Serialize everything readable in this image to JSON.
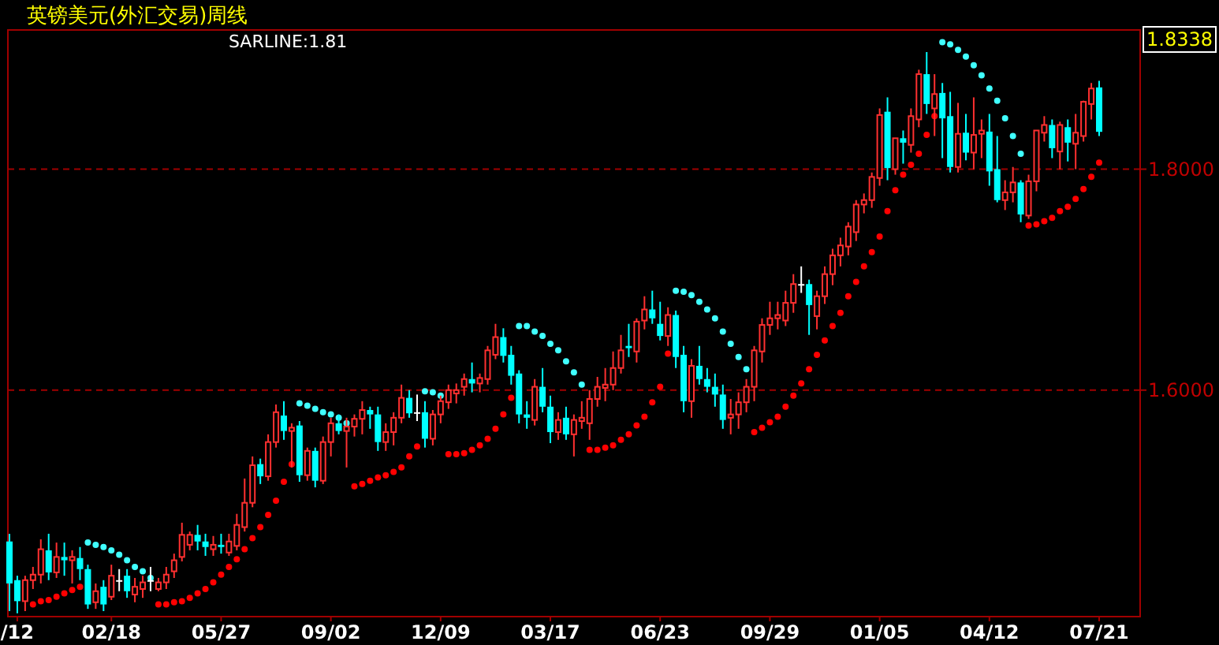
{
  "chart_data": {
    "type": "candlestick",
    "title": "英镑美元(外汇交易)周线",
    "annotations": [
      "SARLINE:1.81",
      "1.8338"
    ],
    "categories": [
      null,
      "/12",
      null,
      null,
      null,
      null,
      null,
      null,
      null,
      null,
      null,
      null,
      null,
      "02/18",
      null,
      null,
      null,
      null,
      null,
      null,
      null,
      null,
      null,
      null,
      null,
      null,
      null,
      "05/27",
      null,
      null,
      null,
      null,
      null,
      null,
      null,
      null,
      null,
      null,
      null,
      null,
      null,
      "09/02",
      null,
      null,
      null,
      null,
      null,
      null,
      null,
      null,
      null,
      null,
      null,
      null,
      null,
      "12/09",
      null,
      null,
      null,
      null,
      null,
      null,
      null,
      null,
      null,
      null,
      null,
      null,
      null,
      "03/17",
      null,
      null,
      null,
      null,
      null,
      null,
      null,
      null,
      null,
      null,
      null,
      null,
      null,
      "06/23",
      null,
      null,
      null,
      null,
      null,
      null,
      null,
      null,
      null,
      null,
      null,
      null,
      null,
      "09/29",
      null,
      null,
      null,
      null,
      null,
      null,
      null,
      null,
      null,
      null,
      null,
      null,
      null,
      "01/05",
      null,
      null,
      null,
      null,
      null,
      null,
      null,
      null,
      null,
      null,
      null,
      null,
      null,
      "04/12",
      null,
      null,
      null,
      null,
      null,
      null,
      null,
      null,
      null,
      null,
      null,
      null,
      null,
      "07/21"
    ],
    "ohlc": [
      [
        1.463,
        1.47,
        1.4,
        1.425
      ],
      [
        1.428,
        1.432,
        1.398,
        1.409
      ],
      [
        1.409,
        1.432,
        1.4,
        1.428
      ],
      [
        1.428,
        1.44,
        1.42,
        1.433
      ],
      [
        1.433,
        1.465,
        1.425,
        1.456
      ],
      [
        1.455,
        1.47,
        1.428,
        1.435
      ],
      [
        1.435,
        1.462,
        1.43,
        1.449
      ],
      [
        1.449,
        1.462,
        1.432,
        1.446
      ],
      [
        1.446,
        1.455,
        1.425,
        1.449
      ],
      [
        1.448,
        1.458,
        1.428,
        1.438
      ],
      [
        1.438,
        1.442,
        1.402,
        1.406
      ],
      [
        1.408,
        1.425,
        1.402,
        1.418
      ],
      [
        1.422,
        1.428,
        1.4,
        1.406
      ],
      [
        1.413,
        1.442,
        1.41,
        1.432
      ],
      [
        1.428,
        1.438,
        1.418,
        1.428
      ],
      [
        1.432,
        1.438,
        1.412,
        1.418
      ],
      [
        1.415,
        1.43,
        1.408,
        1.422
      ],
      [
        1.42,
        1.432,
        1.412,
        1.426
      ],
      [
        1.428,
        1.44,
        1.418,
        1.428
      ],
      [
        1.42,
        1.43,
        1.418,
        1.426
      ],
      [
        1.426,
        1.44,
        1.42,
        1.433
      ],
      [
        1.436,
        1.452,
        1.43,
        1.446
      ],
      [
        1.449,
        1.48,
        1.445,
        1.469
      ],
      [
        1.46,
        1.472,
        1.455,
        1.469
      ],
      [
        1.469,
        1.478,
        1.455,
        1.463
      ],
      [
        1.463,
        1.47,
        1.45,
        1.458
      ],
      [
        1.456,
        1.468,
        1.45,
        1.46
      ],
      [
        1.46,
        1.47,
        1.452,
        1.458
      ],
      [
        1.453,
        1.47,
        1.45,
        1.463
      ],
      [
        1.459,
        1.488,
        1.455,
        1.478
      ],
      [
        1.476,
        1.52,
        1.472,
        1.498
      ],
      [
        1.498,
        1.54,
        1.494,
        1.532
      ],
      [
        1.533,
        1.538,
        1.515,
        1.522
      ],
      [
        1.522,
        1.56,
        1.518,
        1.553
      ],
      [
        1.553,
        1.587,
        1.548,
        1.58
      ],
      [
        1.577,
        1.59,
        1.555,
        1.563
      ],
      [
        1.563,
        1.57,
        1.53,
        1.566
      ],
      [
        1.568,
        1.572,
        1.517,
        1.523
      ],
      [
        1.523,
        1.548,
        1.518,
        1.545
      ],
      [
        1.545,
        1.548,
        1.512,
        1.518
      ],
      [
        1.518,
        1.558,
        1.515,
        1.553
      ],
      [
        1.553,
        1.575,
        1.54,
        1.57
      ],
      [
        1.57,
        1.578,
        1.56,
        1.563
      ],
      [
        1.563,
        1.575,
        1.53,
        1.567
      ],
      [
        1.567,
        1.578,
        1.558,
        1.574
      ],
      [
        1.574,
        1.59,
        1.56,
        1.582
      ],
      [
        1.582,
        1.585,
        1.565,
        1.578
      ],
      [
        1.578,
        1.585,
        1.545,
        1.553
      ],
      [
        1.553,
        1.57,
        1.545,
        1.562
      ],
      [
        1.562,
        1.58,
        1.55,
        1.575
      ],
      [
        1.575,
        1.605,
        1.57,
        1.593
      ],
      [
        1.593,
        1.6,
        1.575,
        1.579
      ],
      [
        1.58,
        1.596,
        1.572,
        1.58
      ],
      [
        1.58,
        1.59,
        1.548,
        1.556
      ],
      [
        1.556,
        1.582,
        1.55,
        1.578
      ],
      [
        1.578,
        1.595,
        1.57,
        1.59
      ],
      [
        1.589,
        1.605,
        1.583,
        1.6
      ],
      [
        1.597,
        1.606,
        1.588,
        1.6
      ],
      [
        1.603,
        1.615,
        1.595,
        1.61
      ],
      [
        1.61,
        1.625,
        1.598,
        1.606
      ],
      [
        1.606,
        1.615,
        1.598,
        1.611
      ],
      [
        1.61,
        1.64,
        1.605,
        1.636
      ],
      [
        1.632,
        1.66,
        1.628,
        1.648
      ],
      [
        1.648,
        1.656,
        1.625,
        1.631
      ],
      [
        1.632,
        1.64,
        1.605,
        1.613
      ],
      [
        1.615,
        1.618,
        1.57,
        1.578
      ],
      [
        1.578,
        1.59,
        1.565,
        1.575
      ],
      [
        1.573,
        1.61,
        1.568,
        1.603
      ],
      [
        1.603,
        1.62,
        1.58,
        1.585
      ],
      [
        1.585,
        1.595,
        1.552,
        1.562
      ],
      [
        1.562,
        1.58,
        1.555,
        1.573
      ],
      [
        1.575,
        1.585,
        1.555,
        1.56
      ],
      [
        1.56,
        1.578,
        1.54,
        1.573
      ],
      [
        1.572,
        1.59,
        1.565,
        1.575
      ],
      [
        1.57,
        1.6,
        1.555,
        1.592
      ],
      [
        1.592,
        1.612,
        1.585,
        1.603
      ],
      [
        1.602,
        1.62,
        1.59,
        1.605
      ],
      [
        1.605,
        1.635,
        1.6,
        1.62
      ],
      [
        1.62,
        1.65,
        1.615,
        1.636
      ],
      [
        1.64,
        1.66,
        1.63,
        1.638
      ],
      [
        1.635,
        1.665,
        1.625,
        1.662
      ],
      [
        1.663,
        1.685,
        1.655,
        1.673
      ],
      [
        1.673,
        1.69,
        1.66,
        1.665
      ],
      [
        1.66,
        1.68,
        1.645,
        1.649
      ],
      [
        1.649,
        1.675,
        1.64,
        1.668
      ],
      [
        1.668,
        1.672,
        1.62,
        1.63
      ],
      [
        1.632,
        1.64,
        1.58,
        1.59
      ],
      [
        1.59,
        1.628,
        1.575,
        1.622
      ],
      [
        1.622,
        1.64,
        1.605,
        1.61
      ],
      [
        1.61,
        1.62,
        1.598,
        1.603
      ],
      [
        1.603,
        1.615,
        1.585,
        1.596
      ],
      [
        1.596,
        1.605,
        1.565,
        1.573
      ],
      [
        1.575,
        1.592,
        1.56,
        1.578
      ],
      [
        1.578,
        1.598,
        1.565,
        1.589
      ],
      [
        1.589,
        1.61,
        1.58,
        1.603
      ],
      [
        1.603,
        1.64,
        1.59,
        1.636
      ],
      [
        1.635,
        1.665,
        1.625,
        1.659
      ],
      [
        1.659,
        1.68,
        1.65,
        1.665
      ],
      [
        1.665,
        1.68,
        1.655,
        1.668
      ],
      [
        1.663,
        1.69,
        1.658,
        1.679
      ],
      [
        1.679,
        1.705,
        1.67,
        1.696
      ],
      [
        1.696,
        1.712,
        1.688,
        1.696
      ],
      [
        1.696,
        1.7,
        1.65,
        1.677
      ],
      [
        1.667,
        1.69,
        1.655,
        1.685
      ],
      [
        1.685,
        1.712,
        1.678,
        1.705
      ],
      [
        1.705,
        1.728,
        1.695,
        1.722
      ],
      [
        1.722,
        1.738,
        1.712,
        1.731
      ],
      [
        1.73,
        1.752,
        1.722,
        1.748
      ],
      [
        1.743,
        1.772,
        1.735,
        1.768
      ],
      [
        1.768,
        1.778,
        1.76,
        1.772
      ],
      [
        1.772,
        1.797,
        1.765,
        1.793
      ],
      [
        1.792,
        1.855,
        1.785,
        1.849
      ],
      [
        1.852,
        1.865,
        1.79,
        1.801
      ],
      [
        1.8,
        1.828,
        1.795,
        1.828
      ],
      [
        1.828,
        1.835,
        1.805,
        1.824
      ],
      [
        1.822,
        1.855,
        1.815,
        1.848
      ],
      [
        1.845,
        1.89,
        1.838,
        1.886
      ],
      [
        1.886,
        1.906,
        1.85,
        1.859
      ],
      [
        1.855,
        1.886,
        1.83,
        1.868
      ],
      [
        1.869,
        1.878,
        1.81,
        1.846
      ],
      [
        1.848,
        1.87,
        1.797,
        1.802
      ],
      [
        1.802,
        1.86,
        1.797,
        1.832
      ],
      [
        1.833,
        1.85,
        1.808,
        1.815
      ],
      [
        1.815,
        1.865,
        1.8,
        1.831
      ],
      [
        1.832,
        1.845,
        1.81,
        1.835
      ],
      [
        1.834,
        1.85,
        1.785,
        1.798
      ],
      [
        1.8,
        1.83,
        1.77,
        1.772
      ],
      [
        1.772,
        1.79,
        1.763,
        1.779
      ],
      [
        1.779,
        1.802,
        1.77,
        1.788
      ],
      [
        1.788,
        1.79,
        1.752,
        1.759
      ],
      [
        1.758,
        1.795,
        1.755,
        1.789
      ],
      [
        1.789,
        1.835,
        1.78,
        1.835
      ],
      [
        1.833,
        1.848,
        1.825,
        1.84
      ],
      [
        1.84,
        1.845,
        1.81,
        1.819
      ],
      [
        1.816,
        1.843,
        1.8,
        1.84
      ],
      [
        1.838,
        1.845,
        1.807,
        1.824
      ],
      [
        1.823,
        1.85,
        1.8,
        1.833
      ],
      [
        1.83,
        1.862,
        1.825,
        1.861
      ],
      [
        1.859,
        1.878,
        1.845,
        1.873
      ],
      [
        1.874,
        1.88,
        1.83,
        1.8338
      ]
    ],
    "colors": [
      "#00ffff",
      "#00ffff",
      "#ff3030",
      "#ff3030",
      "#ff3030",
      "#00ffff",
      "#ff3030",
      "#00ffff",
      "#ff3030",
      "#00ffff",
      "#00ffff",
      "#ff3030",
      "#00ffff",
      "#ff3030",
      "#ffffff",
      "#00ffff",
      "#ff3030",
      "#ff3030",
      "#ffffff",
      "#ff3030",
      "#ff3030",
      "#ff3030",
      "#ff3030",
      "#ff3030",
      "#00ffff",
      "#00ffff",
      "#ff3030",
      "#00ffff",
      "#ff3030",
      "#ff3030",
      "#ff3030",
      "#ff3030",
      "#00ffff",
      "#ff3030",
      "#ff3030",
      "#00ffff",
      "#ff3030",
      "#00ffff",
      "#ff3030",
      "#00ffff",
      "#ff3030",
      "#ff3030",
      "#00ffff",
      "#ff3030",
      "#ff3030",
      "#ff3030",
      "#00ffff",
      "#00ffff",
      "#ff3030",
      "#ff3030",
      "#ff3030",
      "#00ffff",
      "#ffffff",
      "#00ffff",
      "#ff3030",
      "#ff3030",
      "#ff3030",
      "#ff3030",
      "#ff3030",
      "#00ffff",
      "#ff3030",
      "#ff3030",
      "#ff3030",
      "#00ffff",
      "#00ffff",
      "#00ffff",
      "#00ffff",
      "#ff3030",
      "#00ffff",
      "#00ffff",
      "#ff3030",
      "#00ffff",
      "#ff3030",
      "#ff3030",
      "#ff3030",
      "#ff3030",
      "#ff3030",
      "#ff3030",
      "#ff3030",
      "#00ffff",
      "#ff3030",
      "#ff3030",
      "#00ffff",
      "#00ffff",
      "#ff3030",
      "#00ffff",
      "#00ffff",
      "#ff3030",
      "#00ffff",
      "#00ffff",
      "#00ffff",
      "#00ffff",
      "#ff3030",
      "#ff3030",
      "#ff3030",
      "#ff3030",
      "#ff3030",
      "#ff3030",
      "#ff3030",
      "#ff3030",
      "#ff3030",
      "#ffffff",
      "#00ffff",
      "#ff3030",
      "#ff3030",
      "#ff3030",
      "#ff3030",
      "#ff3030",
      "#ff3030",
      "#ff3030",
      "#ff3030",
      "#ff3030",
      "#00ffff",
      "#ff3030",
      "#00ffff",
      "#ff3030",
      "#ff3030",
      "#00ffff",
      "#ff3030",
      "#00ffff",
      "#00ffff",
      "#ff3030",
      "#00ffff",
      "#ff3030",
      "#ff3030",
      "#00ffff",
      "#00ffff",
      "#ff3030",
      "#ff3030",
      "#00ffff",
      "#ff3030",
      "#ff3030",
      "#ff3030",
      "#00ffff",
      "#ff3030",
      "#00ffff",
      "#ff3030",
      "#ff3030",
      "#ff3030",
      "#00ffff"
    ],
    "series": [
      {
        "type": "scatter",
        "color": "#ff0000",
        "values": [
          null,
          null,
          null,
          1.406,
          1.409,
          1.41,
          1.413,
          1.416,
          1.419,
          1.422,
          null,
          null,
          null,
          null,
          null,
          null,
          null,
          null,
          null,
          1.406,
          1.406,
          1.408,
          1.409,
          1.412,
          1.416,
          1.42,
          1.426,
          1.433,
          1.44,
          1.447,
          1.456,
          1.466,
          1.476,
          1.487,
          1.5,
          1.517,
          1.533,
          null,
          null,
          null,
          null,
          null,
          null,
          null,
          1.513,
          1.515,
          1.518,
          1.521,
          1.523,
          1.526,
          1.53,
          1.54,
          1.549,
          null,
          null,
          null,
          1.542,
          1.542,
          1.543,
          1.546,
          1.55,
          1.556,
          1.565,
          1.578,
          1.593,
          null,
          null,
          null,
          null,
          null,
          null,
          null,
          null,
          null,
          1.546,
          1.546,
          1.548,
          1.55,
          1.555,
          1.56,
          1.568,
          1.576,
          1.589,
          1.603,
          1.633,
          null,
          null,
          null,
          null,
          null,
          null,
          null,
          null,
          null,
          null,
          1.562,
          1.566,
          1.571,
          1.576,
          1.585,
          1.595,
          1.606,
          1.619,
          1.632,
          1.645,
          1.658,
          1.67,
          1.685,
          1.698,
          1.712,
          1.725,
          1.739,
          1.762,
          1.781,
          1.795,
          1.804,
          1.814,
          1.831,
          1.848,
          null,
          null,
          null,
          null,
          null,
          null,
          null,
          null,
          null,
          null,
          null,
          1.749,
          1.75,
          1.753,
          1.756,
          1.762,
          1.766,
          1.773,
          1.782,
          1.793,
          1.806
        ]
      },
      {
        "type": "scatter",
        "color": "#40ffff",
        "values": [
          null,
          null,
          null,
          null,
          null,
          null,
          null,
          null,
          null,
          null,
          1.462,
          1.46,
          1.458,
          1.455,
          1.451,
          1.446,
          1.44,
          1.436,
          1.43,
          null,
          null,
          null,
          null,
          null,
          null,
          null,
          null,
          null,
          null,
          null,
          null,
          null,
          null,
          null,
          null,
          null,
          null,
          1.588,
          1.586,
          1.583,
          1.58,
          1.578,
          1.575,
          1.57,
          null,
          null,
          null,
          null,
          null,
          null,
          null,
          null,
          null,
          1.599,
          1.598,
          1.595,
          null,
          null,
          null,
          null,
          null,
          null,
          null,
          null,
          null,
          1.658,
          1.658,
          1.653,
          1.649,
          1.642,
          1.636,
          1.626,
          1.616,
          1.605,
          null,
          null,
          null,
          null,
          null,
          null,
          null,
          null,
          null,
          null,
          null,
          1.69,
          1.689,
          1.686,
          1.68,
          1.673,
          1.665,
          1.653,
          1.642,
          1.63,
          1.619,
          null,
          null,
          null,
          null,
          null,
          null,
          null,
          null,
          null,
          null,
          null,
          null,
          null,
          null,
          null,
          null,
          null,
          null,
          null,
          null,
          null,
          null,
          null,
          null,
          1.915,
          1.913,
          1.908,
          1.902,
          1.894,
          1.885,
          1.873,
          1.862,
          1.846,
          1.83,
          1.814,
          null,
          null,
          null,
          null,
          null,
          null,
          null,
          null,
          null,
          null
        ]
      }
    ],
    "ylim": [
      1.395,
      1.926
    ],
    "yticks": [
      {
        "value": 1.6,
        "label": "1.6000"
      },
      {
        "value": 1.8,
        "label": "1.8000"
      }
    ],
    "grid": "y"
  }
}
